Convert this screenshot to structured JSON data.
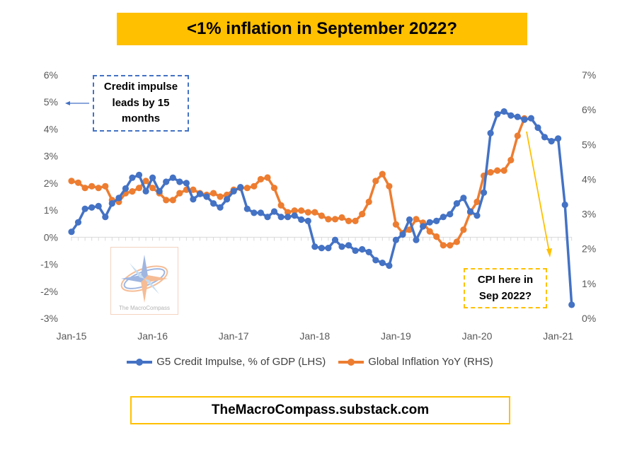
{
  "title": "<1% inflation in September 2022?",
  "footer": "TheMacroCompass.substack.com",
  "annotations": {
    "credit": "Credit impulse\nleads by 15\nmonths",
    "cpi": "CPI here in\nSep 2022?"
  },
  "logo": {
    "text": "The MacroCompass"
  },
  "colors": {
    "blue": "#4472c4",
    "orange": "#ed7d31",
    "gold": "#ffc000"
  },
  "chart_data": {
    "type": "line",
    "x_ticks": [
      "Jan-15",
      "Jan-16",
      "Jan-17",
      "Jan-18",
      "Jan-19",
      "Jan-20",
      "Jan-21"
    ],
    "y_left": {
      "min": -3,
      "max": 6,
      "ticks": [
        "-3%",
        "-2%",
        "-1%",
        "0%",
        "1%",
        "2%",
        "3%",
        "4%",
        "5%",
        "6%"
      ]
    },
    "y_right": {
      "min": 0,
      "max": 7,
      "ticks": [
        "0%",
        "1%",
        "2%",
        "3%",
        "4%",
        "5%",
        "6%",
        "7%"
      ]
    },
    "legend_position": "bottom",
    "series": [
      {
        "name": "G5 Credit Impulse, % of GDP (LHS)",
        "axis": "left",
        "color": "#4472c4",
        "start": "2015-01",
        "values": [
          0.2,
          0.55,
          1.05,
          1.1,
          1.15,
          0.75,
          1.25,
          1.45,
          1.8,
          2.2,
          2.3,
          1.7,
          2.2,
          1.7,
          2.05,
          2.2,
          2.05,
          2.0,
          1.4,
          1.6,
          1.5,
          1.25,
          1.1,
          1.4,
          1.7,
          1.85,
          1.05,
          0.9,
          0.9,
          0.75,
          0.95,
          0.75,
          0.75,
          0.8,
          0.65,
          0.6,
          -0.35,
          -0.4,
          -0.4,
          -0.1,
          -0.35,
          -0.3,
          -0.5,
          -0.45,
          -0.55,
          -0.85,
          -0.95,
          -1.05,
          -0.1,
          0.1,
          0.65,
          -0.1,
          0.4,
          0.55,
          0.6,
          0.75,
          0.85,
          1.25,
          1.45,
          0.95,
          0.8,
          1.65,
          3.85,
          4.55,
          4.65,
          4.5,
          4.45,
          4.35,
          4.4,
          4.05,
          3.7,
          3.55,
          3.65,
          1.2,
          -2.5
        ]
      },
      {
        "name": "Global Inflation YoY (RHS)",
        "axis": "right",
        "color": "#ed7d31",
        "start": "2015-01",
        "values": [
          3.95,
          3.9,
          3.75,
          3.8,
          3.75,
          3.8,
          3.4,
          3.35,
          3.6,
          3.65,
          3.75,
          3.95,
          3.75,
          3.6,
          3.4,
          3.4,
          3.6,
          3.7,
          3.7,
          3.6,
          3.55,
          3.6,
          3.5,
          3.55,
          3.7,
          3.75,
          3.75,
          3.8,
          4.0,
          4.05,
          3.75,
          3.25,
          3.05,
          3.1,
          3.1,
          3.05,
          3.05,
          2.95,
          2.85,
          2.85,
          2.9,
          2.8,
          2.8,
          3.0,
          3.35,
          3.95,
          4.15,
          3.8,
          2.7,
          2.45,
          2.55,
          2.85,
          2.75,
          2.5,
          2.35,
          2.1,
          2.1,
          2.2,
          2.55,
          3.05,
          3.35,
          4.1,
          4.2,
          4.25,
          4.25,
          4.55,
          5.25,
          5.75
        ]
      }
    ]
  }
}
